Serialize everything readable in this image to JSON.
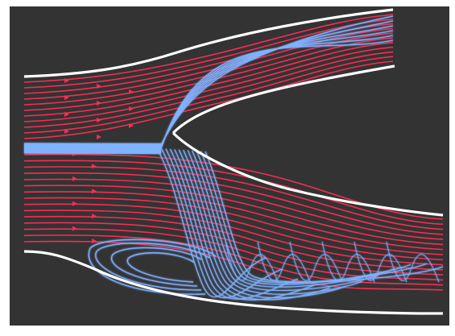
{
  "figure": {
    "background_color": "#333333",
    "frame_color": "#ffffff",
    "wall_color": "#ffffff",
    "primary_stream_color": "#ff2d55",
    "secondary_stream_color": "#7fb2ff",
    "primary_streamlines": 26,
    "secondary_streamlines": 18,
    "has_arrowheads": true
  }
}
